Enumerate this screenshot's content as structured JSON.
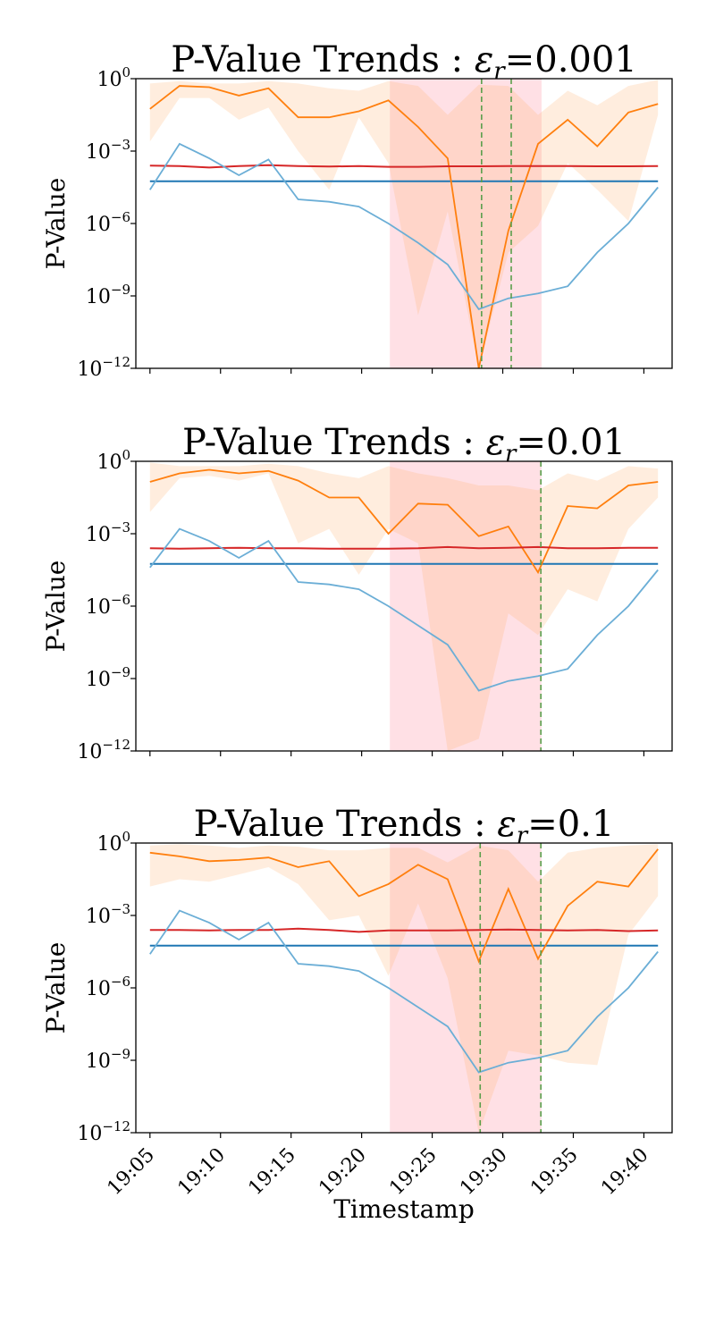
{
  "chart_data": [
    {
      "type": "line",
      "title_prefix": "P-Value Trends : ",
      "title_symbol": "ε",
      "title_subscript": "r",
      "title_value": "=0.001",
      "ylabel": "P-Value",
      "xlabel": "",
      "yscale": "log",
      "ylim_exp": [
        -12,
        0
      ],
      "yticks_exp": [
        0,
        -3,
        -6,
        -9,
        -12
      ],
      "x_range_minutes": [
        "19:04",
        "19:42"
      ],
      "xticks": [
        "19:05",
        "19:10",
        "19:15",
        "19:20",
        "19:25",
        "19:30",
        "19:35",
        "19:40"
      ],
      "show_xtick_labels": false,
      "anomaly_window": [
        "19:22",
        "19:32.75"
      ],
      "event_markers": [
        "19:28.5",
        "19:30.6"
      ],
      "threshold_exp": -4.25,
      "x": [
        "19:05",
        "19:07.1",
        "19:09.2",
        "19:11.3",
        "19:13.4",
        "19:15.5",
        "19:17.7",
        "19:19.8",
        "19:21.9",
        "19:24",
        "19:26.1",
        "19:28.3",
        "19:30.4",
        "19:32.5",
        "19:34.6",
        "19:36.7",
        "19:38.9",
        "19:41"
      ],
      "series": [
        {
          "color": "#ff7f0e",
          "log10_values": [
            -1.25,
            -0.3,
            -0.35,
            -0.7,
            -0.4,
            -1.6,
            -1.6,
            -1.35,
            -0.9,
            -2.0,
            -3.3,
            -12.0,
            -6.3,
            -2.7,
            -1.7,
            -2.8,
            -1.4,
            -1.05
          ]
        },
        {
          "color": "#d62728",
          "log10_values": [
            -3.6,
            -3.62,
            -3.68,
            -3.62,
            -3.58,
            -3.62,
            -3.64,
            -3.62,
            -3.65,
            -3.65,
            -3.63,
            -3.63,
            -3.62,
            -3.62,
            -3.62,
            -3.63,
            -3.63,
            -3.62
          ]
        },
        {
          "color": "#6baed6",
          "log10_values": [
            -4.6,
            -2.7,
            -3.3,
            -4.0,
            -3.35,
            -5.0,
            -5.1,
            -5.3,
            -6.0,
            -6.8,
            -7.7,
            -9.55,
            -9.1,
            -8.9,
            -8.6,
            -7.2,
            -6.0,
            -4.5
          ]
        }
      ],
      "band": {
        "upper_exp": [
          -0.2,
          -0.1,
          -0.2,
          -0.2,
          -0.1,
          -0.2,
          -0.4,
          -0.5,
          -0.1,
          -0.3,
          -1.5,
          -0.25,
          -0.3,
          -1.5,
          -0.5,
          -1.1,
          -0.3,
          -0.05
        ],
        "lower_exp": [
          -2.6,
          -0.8,
          -0.8,
          -1.7,
          -1.2,
          -3.0,
          -4.6,
          -1.6,
          -3.5,
          -9.8,
          -5.5,
          -12.0,
          -7.2,
          -6.1,
          -3.5,
          -4.6,
          -5.9,
          -1.5
        ]
      }
    },
    {
      "type": "line",
      "title_prefix": "P-Value Trends : ",
      "title_symbol": "ε",
      "title_subscript": "r",
      "title_value": "=0.01",
      "ylabel": "P-Value",
      "xlabel": "",
      "yscale": "log",
      "ylim_exp": [
        -12,
        0
      ],
      "yticks_exp": [
        0,
        -3,
        -6,
        -9,
        -12
      ],
      "x_range_minutes": [
        "19:04",
        "19:42"
      ],
      "xticks": [
        "19:05",
        "19:10",
        "19:15",
        "19:20",
        "19:25",
        "19:30",
        "19:35",
        "19:40"
      ],
      "show_xtick_labels": false,
      "anomaly_window": [
        "19:22",
        "19:32.75"
      ],
      "event_markers": [
        "19:32.7"
      ],
      "threshold_exp": -4.25,
      "x": [
        "19:05",
        "19:07.1",
        "19:09.2",
        "19:11.3",
        "19:13.4",
        "19:15.5",
        "19:17.7",
        "19:19.8",
        "19:21.9",
        "19:24",
        "19:26.1",
        "19:28.3",
        "19:30.4",
        "19:32.5",
        "19:34.6",
        "19:36.7",
        "19:38.9",
        "19:41"
      ],
      "series": [
        {
          "color": "#ff7f0e",
          "log10_values": [
            -0.85,
            -0.5,
            -0.35,
            -0.5,
            -0.4,
            -0.8,
            -1.5,
            -1.5,
            -3.0,
            -1.75,
            -1.8,
            -3.1,
            -2.7,
            -4.6,
            -1.85,
            -1.95,
            -1.0,
            -0.85
          ]
        },
        {
          "color": "#d62728",
          "log10_values": [
            -3.6,
            -3.62,
            -3.6,
            -3.58,
            -3.6,
            -3.6,
            -3.62,
            -3.62,
            -3.62,
            -3.6,
            -3.55,
            -3.6,
            -3.58,
            -3.55,
            -3.6,
            -3.6,
            -3.58,
            -3.58
          ]
        },
        {
          "color": "#6baed6",
          "log10_values": [
            -4.4,
            -2.8,
            -3.3,
            -4.0,
            -3.3,
            -5.0,
            -5.1,
            -5.3,
            -6.0,
            -6.8,
            -7.6,
            -9.5,
            -9.1,
            -8.9,
            -8.6,
            -7.2,
            -6.0,
            -4.5
          ]
        }
      ],
      "band": {
        "upper_exp": [
          -0.05,
          -0.2,
          -0.2,
          -0.2,
          -0.1,
          -0.2,
          -0.5,
          -0.7,
          -0.2,
          -0.5,
          -0.7,
          -1.0,
          -1.0,
          -1.2,
          -0.5,
          -0.8,
          -0.2,
          -0.3
        ],
        "lower_exp": [
          -2.1,
          -0.7,
          -0.6,
          -0.8,
          -0.5,
          -3.4,
          -2.8,
          -4.7,
          -2.8,
          -3.4,
          -12.0,
          -11.5,
          -6.3,
          -7.2,
          -5.3,
          -5.8,
          -2.8,
          -1.5
        ]
      }
    },
    {
      "type": "line",
      "title_prefix": "P-Value Trends : ",
      "title_symbol": "ε",
      "title_subscript": "r",
      "title_value": "=0.1",
      "ylabel": "P-Value",
      "xlabel": "Timestamp",
      "yscale": "log",
      "ylim_exp": [
        -12,
        0
      ],
      "yticks_exp": [
        0,
        -3,
        -6,
        -9,
        -12
      ],
      "x_range_minutes": [
        "19:04",
        "19:42"
      ],
      "xticks": [
        "19:05",
        "19:10",
        "19:15",
        "19:20",
        "19:25",
        "19:30",
        "19:35",
        "19:40"
      ],
      "show_xtick_labels": true,
      "anomaly_window": [
        "19:22",
        "19:32.75"
      ],
      "event_markers": [
        "19:28.4",
        "19:32.7"
      ],
      "threshold_exp": -4.25,
      "x": [
        "19:05",
        "19:07.1",
        "19:09.2",
        "19:11.3",
        "19:13.4",
        "19:15.5",
        "19:17.7",
        "19:19.8",
        "19:21.9",
        "19:24",
        "19:26.1",
        "19:28.3",
        "19:30.4",
        "19:32.5",
        "19:34.6",
        "19:36.7",
        "19:38.9",
        "19:41"
      ],
      "series": [
        {
          "color": "#ff7f0e",
          "log10_values": [
            -0.4,
            -0.55,
            -0.75,
            -0.7,
            -0.6,
            -1.0,
            -0.75,
            -2.2,
            -1.7,
            -0.9,
            -1.5,
            -4.9,
            -1.9,
            -4.8,
            -2.6,
            -1.6,
            -1.8,
            -0.25
          ]
        },
        {
          "color": "#d62728",
          "log10_values": [
            -3.6,
            -3.6,
            -3.62,
            -3.6,
            -3.6,
            -3.55,
            -3.6,
            -3.68,
            -3.62,
            -3.62,
            -3.62,
            -3.6,
            -3.58,
            -3.6,
            -3.62,
            -3.6,
            -3.65,
            -3.62
          ]
        },
        {
          "color": "#6baed6",
          "log10_values": [
            -4.6,
            -2.8,
            -3.3,
            -4.0,
            -3.3,
            -5.0,
            -5.1,
            -5.3,
            -6.0,
            -6.8,
            -7.6,
            -9.5,
            -9.1,
            -8.9,
            -8.6,
            -7.2,
            -6.0,
            -4.5
          ]
        }
      ],
      "band": {
        "upper_exp": [
          -0.1,
          -0.05,
          -0.1,
          -0.2,
          -0.1,
          -0.15,
          -0.3,
          -0.3,
          -0.2,
          -0.2,
          -0.8,
          -0.1,
          -0.3,
          -1.6,
          -0.4,
          -0.2,
          -0.1,
          -0.05
        ],
        "lower_exp": [
          -1.8,
          -1.5,
          -1.6,
          -1.3,
          -1.0,
          -1.7,
          -3.2,
          -3.0,
          -5.5,
          -2.5,
          -5.6,
          -12.0,
          -8.6,
          -8.8,
          -9.1,
          -9.2,
          -3.8,
          -2.2
        ]
      }
    }
  ],
  "tick_base": "10"
}
